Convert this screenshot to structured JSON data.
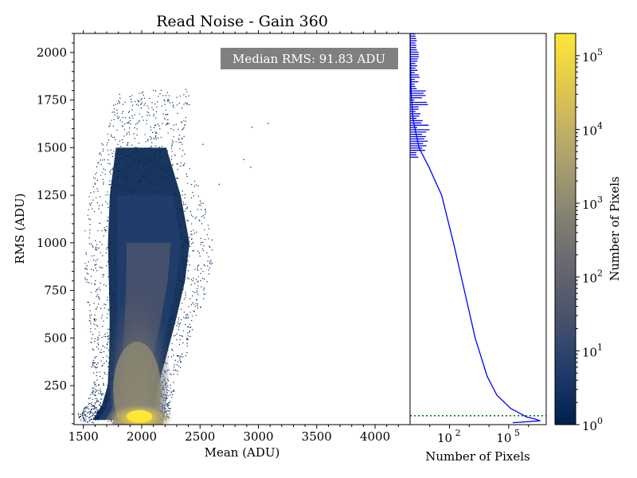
{
  "chart_data": {
    "type": "heatmap",
    "title": "Read Noise - Gain 360",
    "annotation": "Median RMS: 91.83 ADU",
    "main": {
      "xlabel": "Mean (ADU)",
      "ylabel": "RMS (ADU)",
      "xlim": [
        1420,
        4300
      ],
      "ylim": [
        45,
        2100
      ],
      "xticks": [
        1500,
        2000,
        2500,
        3000,
        3500,
        4000
      ],
      "yticks": [
        250,
        500,
        750,
        1000,
        1250,
        1500,
        1750,
        2000
      ],
      "density_ridge": [
        {
          "y": 70,
          "x_left": 1560,
          "x_right": 2040
        },
        {
          "y": 100,
          "x_left": 1590,
          "x_right": 2110
        },
        {
          "y": 150,
          "x_left": 1640,
          "x_right": 2130
        },
        {
          "y": 250,
          "x_left": 1690,
          "x_right": 2160
        },
        {
          "y": 400,
          "x_left": 1700,
          "x_right": 2230
        },
        {
          "y": 600,
          "x_left": 1700,
          "x_right": 2320
        },
        {
          "y": 800,
          "x_left": 1690,
          "x_right": 2400
        },
        {
          "y": 1000,
          "x_left": 1680,
          "x_right": 2440
        },
        {
          "y": 1250,
          "x_left": 1700,
          "x_right": 2360
        },
        {
          "y": 1500,
          "x_left": 1760,
          "x_right": 2230
        },
        {
          "y": 1800,
          "x_left": 1900,
          "x_right": 2320
        }
      ],
      "peak": {
        "x": 1980,
        "y": 80
      }
    },
    "histogram": {
      "xlabel": "Number of Pixels",
      "xscale": "log",
      "xlim_log10": [
        0.0,
        6.9
      ],
      "xticks": [
        {
          "exp": 2,
          "label_base": "10",
          "label_exp": "2"
        },
        {
          "exp": 5,
          "label_base": "10",
          "label_exp": "5"
        }
      ],
      "median_line_rms": 91.83,
      "median_line_style": "dotted green",
      "profile": [
        {
          "rms": 55,
          "count_log10": 5.2
        },
        {
          "rms": 65,
          "count_log10": 6.6
        },
        {
          "rms": 75,
          "count_log10": 6.3
        },
        {
          "rms": 85,
          "count_log10": 5.9
        },
        {
          "rms": 100,
          "count_log10": 5.65
        },
        {
          "rms": 130,
          "count_log10": 5.1
        },
        {
          "rms": 200,
          "count_log10": 4.4
        },
        {
          "rms": 300,
          "count_log10": 3.9
        },
        {
          "rms": 500,
          "count_log10": 3.3
        },
        {
          "rms": 750,
          "count_log10": 2.75
        },
        {
          "rms": 1000,
          "count_log10": 2.2
        },
        {
          "rms": 1250,
          "count_log10": 1.6
        },
        {
          "rms": 1400,
          "count_log10": 0.95
        },
        {
          "rms": 1500,
          "count_log10": 0.45
        },
        {
          "rms": 1650,
          "count_log10": 0.15
        },
        {
          "rms": 1800,
          "count_log10": 0.05
        },
        {
          "rms": 2100,
          "count_log10": 0.0
        }
      ]
    },
    "colorbar": {
      "label": "Number of Pixels",
      "scale": "log",
      "range_log10": [
        0,
        5.3
      ],
      "ticks": [
        {
          "exp": 0,
          "label_base": "10",
          "label_exp": "0"
        },
        {
          "exp": 1,
          "label_base": "10",
          "label_exp": "1"
        },
        {
          "exp": 2,
          "label_base": "10",
          "label_exp": "2"
        },
        {
          "exp": 3,
          "label_base": "10",
          "label_exp": "3"
        },
        {
          "exp": 4,
          "label_base": "10",
          "label_exp": "4"
        },
        {
          "exp": 5,
          "label_base": "10",
          "label_exp": "5"
        }
      ],
      "colormap": [
        "#00204c",
        "#213d6b",
        "#4c546c",
        "#6b6b70",
        "#8e8a72",
        "#b7a86b",
        "#dfc64f",
        "#fde737"
      ]
    },
    "colors": {
      "hist_line": "#0000ff",
      "median_line": "#008000",
      "annotation_bg": "#808080",
      "annotation_text": "#ffffff"
    }
  }
}
